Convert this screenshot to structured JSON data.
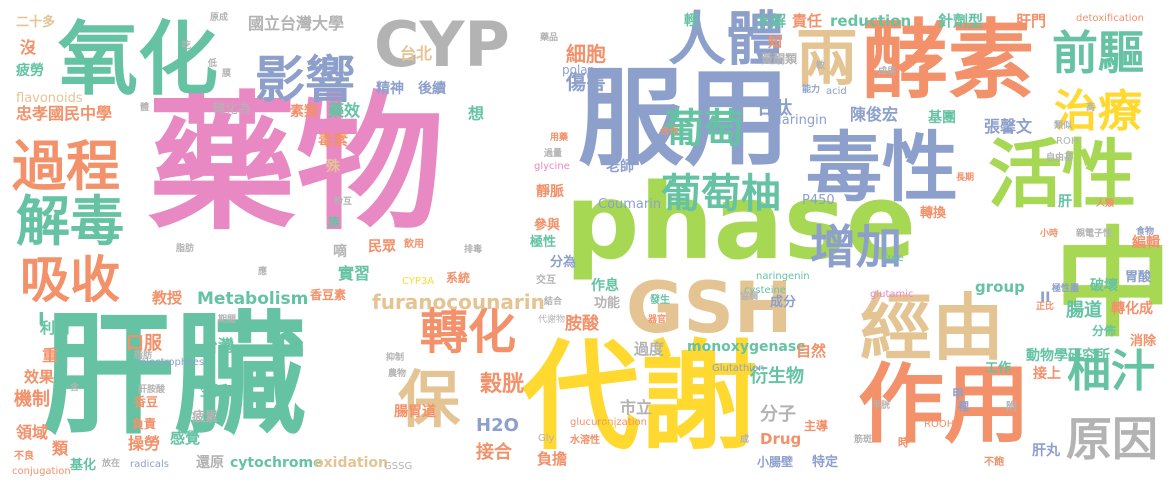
{
  "colors": {
    "pink": "#e889c4",
    "teal": "#65c3a3",
    "orange": "#f2916a",
    "blue": "#8da0cb",
    "green": "#a6d854",
    "yellow": "#ffd92f",
    "tan": "#e5c494",
    "gray": "#b3b3b3"
  },
  "words": [
    {
      "t": "藥物",
      "c": "pink"
    },
    {
      "t": "肝臟",
      "c": "teal"
    },
    {
      "t": "phase",
      "c": "green"
    },
    {
      "t": "代謝",
      "c": "yellow"
    },
    {
      "t": "服用",
      "c": "blue"
    },
    {
      "t": "中",
      "c": "green"
    },
    {
      "t": "酵素",
      "c": "orange"
    },
    {
      "t": "氧化",
      "c": "teal"
    },
    {
      "t": "毒性",
      "c": "blue"
    },
    {
      "t": "活性",
      "c": "green"
    },
    {
      "t": "作用",
      "c": "orange"
    },
    {
      "t": "經由",
      "c": "tan"
    },
    {
      "t": "GSH",
      "c": "tan"
    },
    {
      "t": "CYP",
      "c": "gray"
    },
    {
      "t": "人體",
      "c": "blue"
    },
    {
      "t": "影響",
      "c": "blue"
    },
    {
      "t": "過程",
      "c": "orange"
    },
    {
      "t": "解毒",
      "c": "teal"
    },
    {
      "t": "吸收",
      "c": "orange"
    },
    {
      "t": "轉化",
      "c": "orange"
    },
    {
      "t": "增加",
      "c": "blue"
    },
    {
      "t": "葡萄",
      "c": "teal"
    },
    {
      "t": "葡萄柚",
      "c": "teal"
    },
    {
      "t": "治療",
      "c": "yellow"
    },
    {
      "t": "前驅",
      "c": "teal"
    },
    {
      "t": "兩",
      "c": "tan"
    },
    {
      "t": "柚汁",
      "c": "teal"
    },
    {
      "t": "原因",
      "c": "gray"
    },
    {
      "t": "保",
      "c": "tan"
    },
    {
      "t": "furanocounarin",
      "c": "tan"
    },
    {
      "t": "Metabolism",
      "c": "teal"
    },
    {
      "t": "細胞",
      "c": "orange"
    },
    {
      "t": "傷害",
      "c": "blue"
    },
    {
      "t": "國立台灣大學",
      "c": "gray"
    },
    {
      "t": "台北",
      "c": "tan"
    },
    {
      "t": "精神",
      "c": "blue"
    },
    {
      "t": "後續",
      "c": "blue"
    },
    {
      "t": "甘肽",
      "c": "blue"
    },
    {
      "t": "陳俊宏",
      "c": "blue"
    },
    {
      "t": "張馨文",
      "c": "blue"
    },
    {
      "t": "忠孝國民中學",
      "c": "orange"
    },
    {
      "t": "flavonoids",
      "c": "tan"
    },
    {
      "t": "Naringin",
      "c": "blue"
    },
    {
      "t": "reduction",
      "c": "teal"
    },
    {
      "t": "針劑型",
      "c": "teal"
    },
    {
      "t": "肝門",
      "c": "orange"
    },
    {
      "t": "水解",
      "c": "teal"
    },
    {
      "t": "責任",
      "c": "orange"
    },
    {
      "t": "細胞",
      "c": "orange"
    },
    {
      "t": "二十多",
      "c": "tan"
    },
    {
      "t": "沒",
      "c": "orange"
    },
    {
      "t": "疲勞",
      "c": "teal"
    },
    {
      "t": "轉化為",
      "c": "gray"
    },
    {
      "t": "素類",
      "c": "orange"
    },
    {
      "t": "藥效",
      "c": "teal"
    },
    {
      "t": "毒素",
      "c": "orange"
    },
    {
      "t": "老師",
      "c": "blue"
    },
    {
      "t": "Coumarin",
      "c": "blue"
    },
    {
      "t": "P450",
      "c": "blue"
    },
    {
      "t": "靜脈",
      "c": "orange"
    },
    {
      "t": "參與",
      "c": "orange"
    },
    {
      "t": "極性",
      "c": "teal"
    },
    {
      "t": "實習",
      "c": "teal"
    },
    {
      "t": "民眾",
      "c": "orange"
    },
    {
      "t": "教授",
      "c": "orange"
    },
    {
      "t": "香豆素",
      "c": "orange"
    },
    {
      "t": "系統",
      "c": "orange"
    },
    {
      "t": "CYP3A",
      "c": "yellow"
    },
    {
      "t": "分為",
      "c": "blue"
    },
    {
      "t": "作息",
      "c": "teal"
    },
    {
      "t": "功能",
      "c": "gray"
    },
    {
      "t": "胺酸",
      "c": "orange"
    },
    {
      "t": "過度",
      "c": "gray"
    },
    {
      "t": "monoxygenase",
      "c": "teal"
    },
    {
      "t": "穀胱",
      "c": "orange"
    },
    {
      "t": "H2O",
      "c": "blue"
    },
    {
      "t": "接合",
      "c": "orange"
    },
    {
      "t": "衍生物",
      "c": "teal"
    },
    {
      "t": "市立",
      "c": "gray"
    },
    {
      "t": "腸胃道",
      "c": "orange"
    },
    {
      "t": "負擔",
      "c": "orange"
    },
    {
      "t": "分子",
      "c": "gray"
    },
    {
      "t": "Drug",
      "c": "orange"
    },
    {
      "t": "自然",
      "c": "orange"
    },
    {
      "t": "成分",
      "c": "blue"
    },
    {
      "t": "破壞",
      "c": "teal"
    },
    {
      "t": "group",
      "c": "teal"
    },
    {
      "t": "II",
      "c": "blue"
    },
    {
      "t": "腸道",
      "c": "teal"
    },
    {
      "t": "轉化成",
      "c": "orange"
    },
    {
      "t": "編輯",
      "c": "orange"
    },
    {
      "t": "動物學研究所",
      "c": "teal"
    },
    {
      "t": "接上",
      "c": "orange"
    },
    {
      "t": "分佈",
      "c": "teal"
    },
    {
      "t": "消除",
      "c": "orange"
    },
    {
      "t": "工作",
      "c": "teal"
    },
    {
      "t": "胃酸",
      "c": "blue"
    },
    {
      "t": "肝丸",
      "c": "blue"
    },
    {
      "t": "特定",
      "c": "blue"
    },
    {
      "t": "小腸壁",
      "c": "blue"
    },
    {
      "t": "cytochrome",
      "c": "teal"
    },
    {
      "t": "oxidation",
      "c": "tan"
    },
    {
      "t": "還原",
      "c": "gray"
    },
    {
      "t": "感覺",
      "c": "teal"
    },
    {
      "t": "疲累",
      "c": "gray"
    },
    {
      "t": "生活",
      "c": "teal"
    },
    {
      "t": "台灣",
      "c": "teal"
    },
    {
      "t": "口服",
      "c": "orange"
    },
    {
      "t": "機制",
      "c": "orange"
    },
    {
      "t": "效果",
      "c": "orange"
    },
    {
      "t": "領域",
      "c": "orange"
    },
    {
      "t": "操勞",
      "c": "orange"
    },
    {
      "t": "類",
      "c": "orange"
    },
    {
      "t": "基化",
      "c": "teal"
    },
    {
      "t": "重",
      "c": "orange"
    },
    {
      "t": "利用",
      "c": "teal"
    },
    {
      "t": "I",
      "c": "teal"
    },
    {
      "t": "負責",
      "c": "orange"
    },
    {
      "t": "香豆",
      "c": "orange"
    },
    {
      "t": "electrophiles",
      "c": "blue"
    },
    {
      "t": "radicals",
      "c": "blue"
    },
    {
      "t": "conjugation",
      "c": "orange"
    },
    {
      "t": "glucuronization",
      "c": "orange"
    },
    {
      "t": "naringenin",
      "c": "teal"
    },
    {
      "t": "cysteine",
      "c": "teal"
    },
    {
      "t": "glutamic",
      "c": "pink"
    },
    {
      "t": "glycine",
      "c": "pink"
    },
    {
      "t": "polar",
      "c": "blue"
    },
    {
      "t": "基團",
      "c": "teal"
    },
    {
      "t": "黃酮類",
      "c": "gray"
    },
    {
      "t": "知",
      "c": "orange"
    },
    {
      "t": "輕",
      "c": "teal"
    },
    {
      "t": "想",
      "c": "teal"
    },
    {
      "t": "嘀",
      "c": "gray"
    },
    {
      "t": "殊",
      "c": "tan"
    },
    {
      "t": "族",
      "c": "teal"
    },
    {
      "t": "飲用",
      "c": "orange"
    },
    {
      "t": "GSSG",
      "c": "gray"
    },
    {
      "t": "Gly",
      "c": "gray"
    },
    {
      "t": "Glu",
      "c": "yellow"
    },
    {
      "t": "Glutathion",
      "c": "blue"
    },
    {
      "t": "ROOH",
      "c": "orange"
    },
    {
      "t": "ROH",
      "c": "gray"
    },
    {
      "t": "主導",
      "c": "orange"
    },
    {
      "t": "甲",
      "c": "blue"
    },
    {
      "t": "時",
      "c": "orange"
    },
    {
      "t": "附",
      "c": "gray"
    },
    {
      "t": "裡",
      "c": "blue"
    },
    {
      "t": "不飽",
      "c": "orange"
    },
    {
      "t": "不良",
      "c": "orange"
    },
    {
      "t": "free",
      "c": "teal"
    },
    {
      "t": "acid",
      "c": "blue"
    },
    {
      "t": "detoxification",
      "c": "orange"
    },
    {
      "t": "轉換",
      "c": "orange"
    },
    {
      "t": "肝",
      "c": "teal"
    },
    {
      "t": "水溶性",
      "c": "orange"
    },
    {
      "t": "交互",
      "c": "gray"
    },
    {
      "t": "代謝物",
      "c": "gray"
    },
    {
      "t": "發生",
      "c": "teal"
    },
    {
      "t": "器官",
      "c": "orange"
    },
    {
      "t": "協調",
      "c": "gray"
    },
    {
      "t": "正比",
      "c": "orange"
    },
    {
      "t": "極性團",
      "c": "blue"
    },
    {
      "t": "親電子性",
      "c": "gray"
    },
    {
      "t": "人類",
      "c": "orange"
    },
    {
      "t": "食物",
      "c": "blue"
    },
    {
      "t": "自由基",
      "c": "gray"
    },
    {
      "t": "長期",
      "c": "orange"
    },
    {
      "t": "小時",
      "c": "orange"
    },
    {
      "t": "合作",
      "c": "orange"
    },
    {
      "t": "成果",
      "c": "gray"
    },
    {
      "t": "能力",
      "c": "blue"
    },
    {
      "t": "藥品",
      "c": "gray"
    },
    {
      "t": "用藥",
      "c": "orange"
    },
    {
      "t": "過量",
      "c": "gray"
    },
    {
      "t": "脂肪",
      "c": "gray"
    },
    {
      "t": "期間",
      "c": "gray"
    },
    {
      "t": "抑制",
      "c": "gray"
    },
    {
      "t": "農物",
      "c": "gray"
    },
    {
      "t": "類似",
      "c": "gray"
    },
    {
      "t": "高",
      "c": "gray"
    },
    {
      "t": "原成",
      "c": "gray"
    },
    {
      "t": "吃",
      "c": "gray"
    },
    {
      "t": "低",
      "c": "gray"
    },
    {
      "t": "膜",
      "c": "gray"
    },
    {
      "t": "敏",
      "c": "gray"
    },
    {
      "t": "體",
      "c": "gray"
    },
    {
      "t": "應",
      "c": "gray"
    },
    {
      "t": "粉互",
      "c": "gray"
    },
    {
      "t": "肝胺酸",
      "c": "gray"
    },
    {
      "t": "結合",
      "c": "gray"
    },
    {
      "t": "排毒",
      "c": "gray"
    },
    {
      "t": "脂肪",
      "c": "gray"
    },
    {
      "t": "成",
      "c": "gray"
    },
    {
      "t": "筋斑",
      "c": "gray"
    },
    {
      "t": "半胱",
      "c": "gray"
    },
    {
      "t": "放在",
      "c": "gray"
    },
    {
      "t": "含",
      "c": "gray"
    }
  ]
}
